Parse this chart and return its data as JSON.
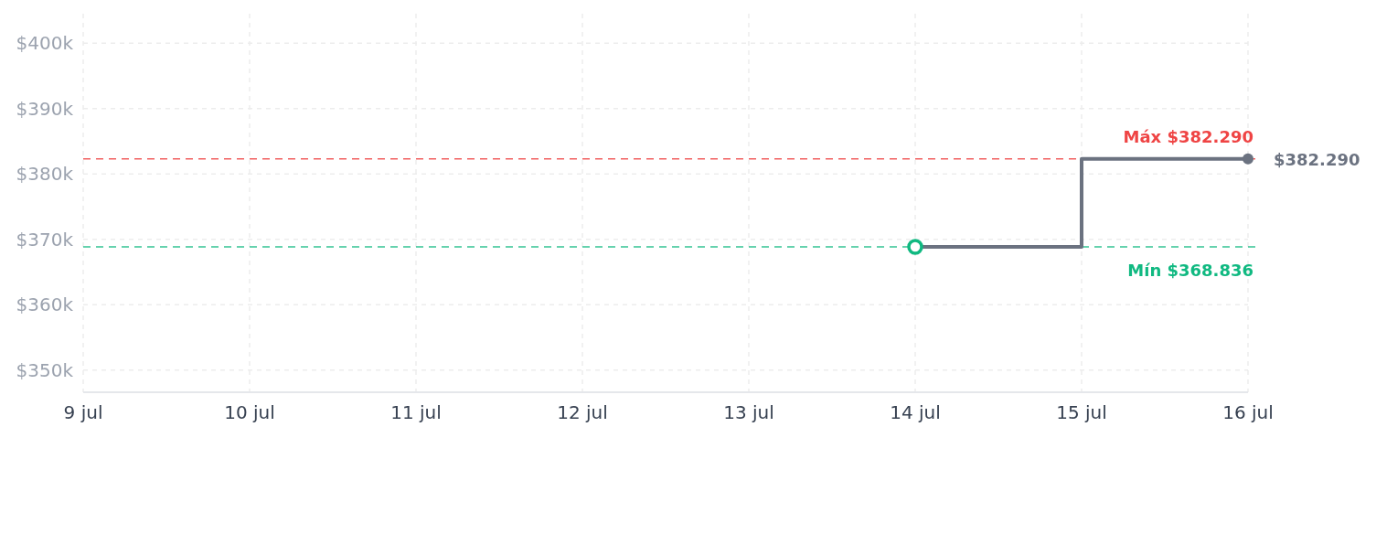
{
  "chart_data": {
    "type": "step",
    "x": [
      "--07-14",
      "--07-15",
      "--07-16"
    ],
    "series": [
      {
        "color": "#6b7280",
        "values": [
          368836,
          382290,
          382290
        ]
      },
      {
        "type": "scatter",
        "color": "#10b981",
        "x": [
          "--07-14"
        ],
        "values": [
          368836
        ],
        "marker": "circle"
      },
      {
        "type": "scatter",
        "color": "#6b7280",
        "x": [
          "--07-16"
        ],
        "values": [
          382290
        ],
        "value_labels": [
          "$382.290"
        ],
        "marker": "circle"
      }
    ],
    "xlim": [
      "--07-09",
      "--07-16"
    ],
    "xticks": [
      {
        "value": "--07-09",
        "label": "9 jul"
      },
      {
        "value": "--07-10",
        "label": "10 jul"
      },
      {
        "value": "--07-11",
        "label": "11 jul"
      },
      {
        "value": "--07-12",
        "label": "12 jul"
      },
      {
        "value": "--07-13",
        "label": "13 jul"
      },
      {
        "value": "--07-14",
        "label": "14 jul"
      },
      {
        "value": "--07-15",
        "label": "15 jul"
      },
      {
        "value": "--07-16",
        "label": "16 jul"
      }
    ],
    "ylim": [
      346600,
      404500
    ],
    "yticks": [
      {
        "value": 350000,
        "label": "$350k"
      },
      {
        "value": 360000,
        "label": "$360k"
      },
      {
        "value": 370000,
        "label": "$370k"
      },
      {
        "value": 380000,
        "label": "$380k"
      },
      {
        "value": 390000,
        "label": "$390k"
      },
      {
        "value": 400000,
        "label": "$400k"
      }
    ],
    "ref_lines": [
      {
        "axis": "y",
        "value": 382290,
        "label": "Máx $382.290",
        "color": "#ef4444",
        "line_style": "dashed"
      },
      {
        "axis": "y",
        "value": 368836,
        "label": "Mín $368.836",
        "color": "#10b981",
        "line_style": "dashed"
      }
    ],
    "grid": true,
    "line_style": "solid"
  }
}
